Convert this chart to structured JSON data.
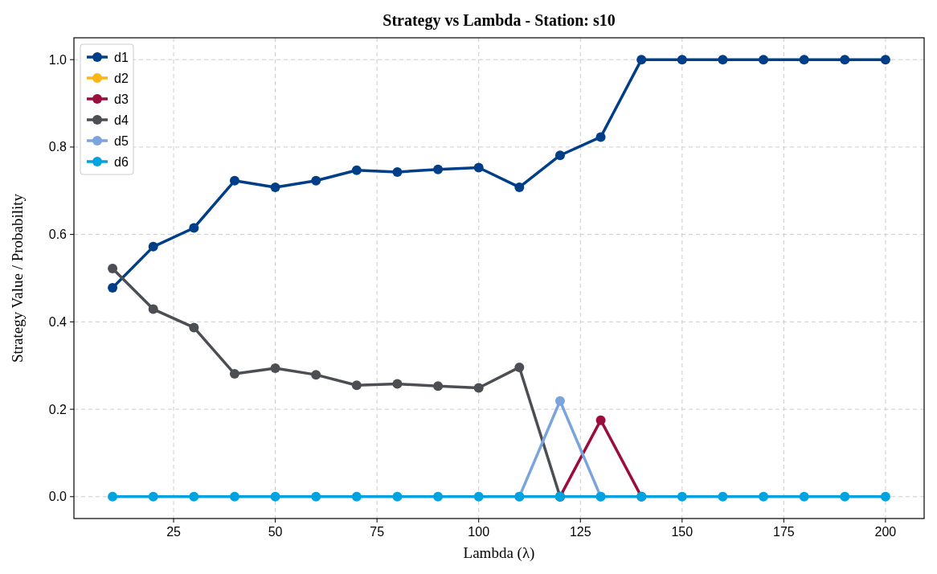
{
  "chart_data": {
    "type": "line",
    "title": "Strategy vs Lambda - Station: s10",
    "xlabel": "Lambda (λ)",
    "ylabel": "Strategy Value / Probability",
    "x": [
      10,
      20,
      30,
      40,
      50,
      60,
      70,
      80,
      90,
      100,
      110,
      120,
      130,
      140,
      150,
      160,
      170,
      180,
      190,
      200
    ],
    "xlim": [
      0.5,
      209.5
    ],
    "xticks": [
      25,
      50,
      75,
      100,
      125,
      150,
      175,
      200
    ],
    "ylim": [
      -0.05,
      1.05
    ],
    "yticks": [
      {
        "value": 0,
        "label": "0.0"
      },
      {
        "value": 0.2,
        "label": "0.2"
      },
      {
        "value": 0.4,
        "label": "0.4"
      },
      {
        "value": 0.6,
        "label": "0.6"
      },
      {
        "value": 0.8,
        "label": "0.8"
      },
      {
        "value": 1,
        "label": "1.0"
      }
    ],
    "grid": true,
    "legend": "top left",
    "marker": "circle",
    "line_style": "solid",
    "series": [
      {
        "name": "d1",
        "color": "#003f88",
        "values": [
          0.478,
          0.572,
          0.615,
          0.723,
          0.708,
          0.723,
          0.747,
          0.743,
          0.749,
          0.753,
          0.708,
          0.781,
          0.823,
          1,
          1,
          1,
          1,
          1,
          1,
          1
        ]
      },
      {
        "name": "d2",
        "color": "#fdb515",
        "values": [
          null,
          null,
          null,
          null,
          null,
          null,
          null,
          null,
          null,
          null,
          null,
          null,
          null,
          null,
          null,
          null,
          null,
          null,
          null,
          null
        ]
      },
      {
        "name": "d3",
        "color": "#9b0d3c",
        "values": [
          null,
          null,
          null,
          null,
          null,
          null,
          null,
          null,
          null,
          null,
          null,
          0,
          0.175,
          0,
          null,
          null,
          null,
          null,
          null,
          null
        ]
      },
      {
        "name": "d4",
        "color": "#4b4f54",
        "values": [
          0.522,
          0.429,
          0.387,
          0.281,
          0.294,
          0.279,
          0.255,
          0.258,
          0.253,
          0.249,
          0.296,
          0,
          null,
          null,
          null,
          null,
          null,
          null,
          null,
          null
        ]
      },
      {
        "name": "d5",
        "color": "#7ba4dd",
        "values": [
          null,
          null,
          null,
          null,
          null,
          null,
          null,
          null,
          null,
          null,
          0,
          0.219,
          0,
          null,
          null,
          null,
          null,
          null,
          null,
          null
        ]
      },
      {
        "name": "d6",
        "color": "#00a3e0",
        "values": [
          0,
          0,
          0,
          0,
          0,
          0,
          0,
          0,
          0,
          0,
          0,
          0,
          0,
          0,
          0,
          0,
          0,
          0,
          0,
          0
        ]
      }
    ]
  }
}
